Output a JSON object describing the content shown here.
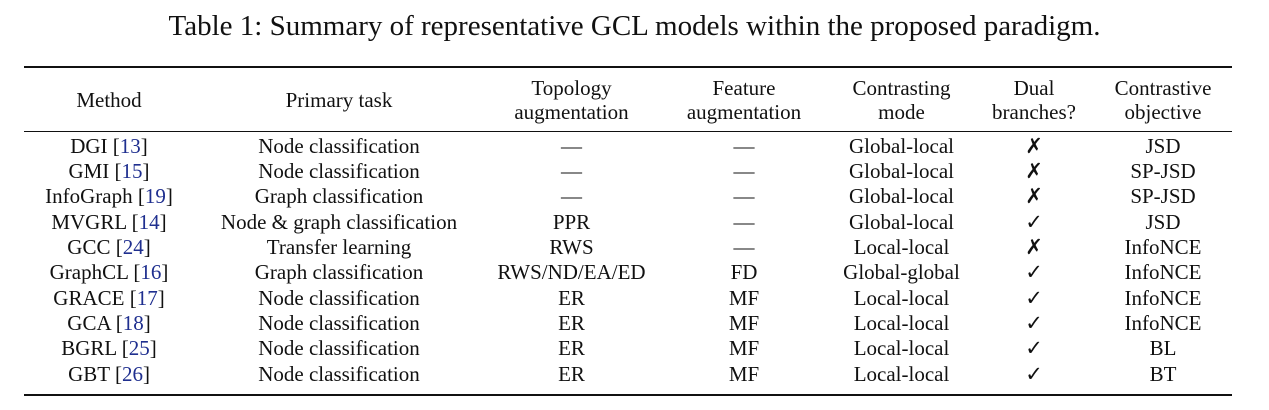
{
  "caption": "Table 1: Summary of representative GCL models within the proposed paradigm.",
  "headers": [
    [
      "Method"
    ],
    [
      "Primary task"
    ],
    [
      "Topology",
      "augmentation"
    ],
    [
      "Feature",
      "augmentation"
    ],
    [
      "Contrasting",
      "mode"
    ],
    [
      "Dual",
      "branches?"
    ],
    [
      "Contrastive",
      "objective"
    ]
  ],
  "rows": [
    {
      "method": "DGI",
      "ref": "13",
      "task": "Node classification",
      "topo": "—",
      "feat": "—",
      "mode": "Global-local",
      "dual": "✗",
      "objective": "JSD"
    },
    {
      "method": "GMI",
      "ref": "15",
      "task": "Node classification",
      "topo": "—",
      "feat": "—",
      "mode": "Global-local",
      "dual": "✗",
      "objective": "SP-JSD"
    },
    {
      "method": "InfoGraph",
      "ref": "19",
      "task": "Graph classification",
      "topo": "—",
      "feat": "—",
      "mode": "Global-local",
      "dual": "✗",
      "objective": "SP-JSD"
    },
    {
      "method": "MVGRL",
      "ref": "14",
      "task": "Node & graph classification",
      "topo": "PPR",
      "feat": "—",
      "mode": "Global-local",
      "dual": "✓",
      "objective": "JSD"
    },
    {
      "method": "GCC",
      "ref": "24",
      "task": "Transfer learning",
      "topo": "RWS",
      "feat": "—",
      "mode": "Local-local",
      "dual": "✗",
      "objective": "InfoNCE"
    },
    {
      "method": "GraphCL",
      "ref": "16",
      "task": "Graph classification",
      "topo": "RWS/ND/EA/ED",
      "feat": "FD",
      "mode": "Global-global",
      "dual": "✓",
      "objective": "InfoNCE"
    },
    {
      "method": "GRACE",
      "ref": "17",
      "task": "Node classification",
      "topo": "ER",
      "feat": "MF",
      "mode": "Local-local",
      "dual": "✓",
      "objective": "InfoNCE"
    },
    {
      "method": "GCA",
      "ref": "18",
      "task": "Node classification",
      "topo": "ER",
      "feat": "MF",
      "mode": "Local-local",
      "dual": "✓",
      "objective": "InfoNCE"
    },
    {
      "method": "BGRL",
      "ref": "25",
      "task": "Node classification",
      "topo": "ER",
      "feat": "MF",
      "mode": "Local-local",
      "dual": "✓",
      "objective": "BL"
    },
    {
      "method": "GBT",
      "ref": "26",
      "task": "Node classification",
      "topo": "ER",
      "feat": "MF",
      "mode": "Local-local",
      "dual": "✓",
      "objective": "BT"
    }
  ],
  "colors": {
    "text": "#111111",
    "reference_link": "#1f2f8f"
  }
}
